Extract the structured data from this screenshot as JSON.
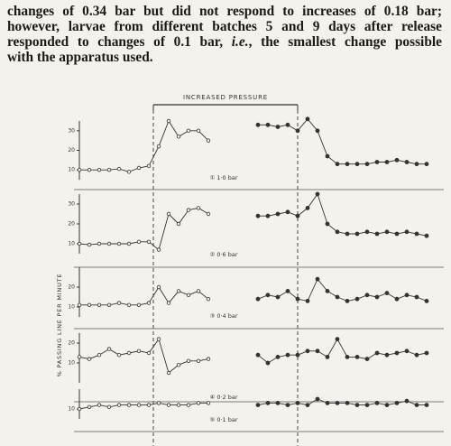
{
  "text": {
    "lines": [
      "changes of 0.34 bar but did not respond to increases of 0.18 bar;",
      "however, larvae from different batches 5 and 9 days after release",
      [
        "responded to changes of 0.1 bar, ",
        "i.e.",
        ", the smallest change possible"
      ],
      "with the apparatus used."
    ]
  },
  "figure": {
    "title": "INCREASED PRESSURE",
    "y_label": "% PASSING LINE PER MINUTE"
  },
  "chart_data": [
    {
      "type": "line",
      "label": "① 1·0 bar",
      "ylim": [
        5,
        35
      ],
      "yticks": [
        10,
        20,
        30
      ],
      "color": "#333",
      "values": [
        10,
        10,
        10,
        10,
        10.5,
        9,
        11,
        12,
        22,
        35,
        27,
        30,
        30,
        25,
        null,
        null,
        null,
        null,
        33,
        33,
        32,
        33,
        30,
        36,
        30,
        17,
        13,
        13,
        13,
        13,
        14,
        14,
        15,
        14,
        13,
        13
      ]
    },
    {
      "type": "line",
      "label": "② 0·6 bar",
      "ylim": [
        5,
        35
      ],
      "yticks": [
        10,
        20,
        30
      ],
      "color": "#333",
      "values": [
        10,
        9.5,
        10,
        10,
        10,
        10,
        11,
        11,
        7,
        25,
        20,
        27,
        28,
        25,
        null,
        null,
        null,
        null,
        24,
        24,
        25,
        26,
        24,
        28,
        35,
        20,
        16,
        15,
        15,
        16,
        15,
        16,
        15,
        16,
        15,
        14
      ]
    },
    {
      "type": "line",
      "label": "③ 0·4 bar",
      "ylim": [
        5,
        30
      ],
      "yticks": [
        10,
        20
      ],
      "color": "#333",
      "values": [
        11,
        11,
        11,
        11,
        12,
        11,
        11,
        12,
        20,
        12,
        18,
        16,
        18,
        14,
        null,
        null,
        null,
        null,
        14,
        16,
        15,
        18,
        14,
        13,
        24,
        18,
        15,
        13,
        14,
        16,
        15,
        17,
        14,
        16,
        15,
        13
      ]
    },
    {
      "type": "line",
      "label": "④ 0·2 bar",
      "ylim": [
        0,
        25
      ],
      "yticks": [
        10,
        20
      ],
      "color": "#333",
      "values": [
        13,
        12,
        14,
        17,
        14,
        15,
        16,
        15,
        22,
        5,
        9,
        11,
        11,
        12,
        null,
        null,
        null,
        null,
        14,
        10,
        13,
        14,
        14,
        16,
        16,
        13,
        22,
        13,
        13,
        12,
        15,
        14,
        15,
        16,
        14,
        15
      ]
    },
    {
      "type": "line",
      "label": "⑤ 0·1 bar",
      "ylim": [
        5,
        20
      ],
      "yticks": [
        10
      ],
      "color": "#333",
      "values": [
        10,
        11,
        12,
        11,
        12,
        12,
        12,
        12,
        13,
        12,
        12,
        12,
        13,
        13,
        null,
        null,
        null,
        null,
        12,
        13,
        13,
        12,
        13,
        12,
        15,
        13,
        13,
        13,
        12,
        12,
        13,
        12,
        13,
        14,
        12,
        12
      ]
    }
  ]
}
